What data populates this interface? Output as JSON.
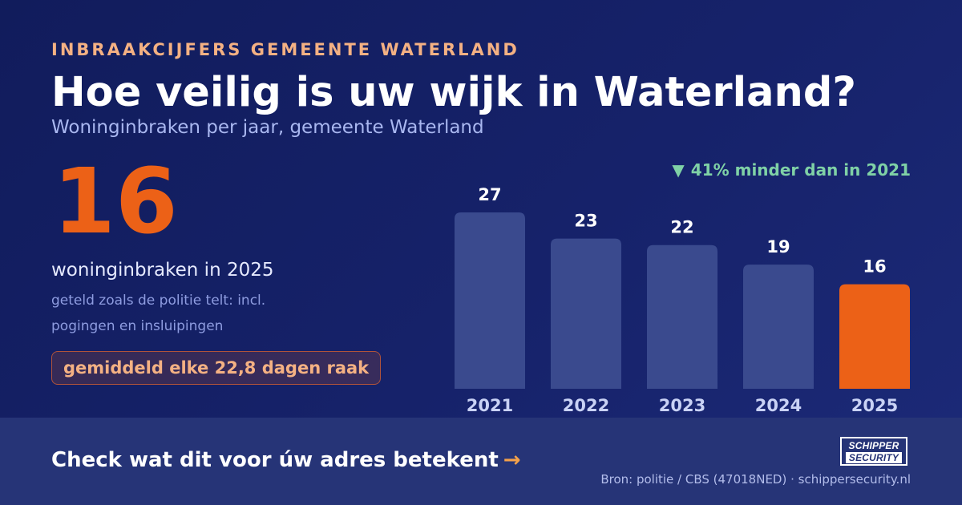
{
  "header": {
    "eyebrow": "INBRAAKCIJFERS GEMEENTE WATERLAND",
    "title": "Hoe veilig is uw wijk in Waterland?",
    "subtitle": "Woninginbraken per jaar, gemeente Waterland"
  },
  "highlight": {
    "number": "16",
    "caption": "woninginbraken in 2025",
    "note_line1": "geteld zoals de politie telt: incl.",
    "note_line2": "pogingen en insluipingen",
    "pill": "gemiddeld elke 22,8 dagen raak"
  },
  "change": {
    "arrow": "▼",
    "text": "41% minder dan in 2021",
    "color": "#7fd1a6"
  },
  "chart_data": {
    "type": "bar",
    "categories": [
      "2021",
      "2022",
      "2023",
      "2024",
      "2025"
    ],
    "values": [
      27,
      23,
      22,
      19,
      16
    ],
    "highlight_index": 4,
    "colors": {
      "bar": "#3a4a8e",
      "highlight": "#ec6117",
      "label": "#ffffff",
      "tick": "#c9d2f5"
    },
    "ylim": [
      0,
      27
    ],
    "grid": false,
    "legend": "none"
  },
  "footer": {
    "cta": "Check wat dit voor úw adres betekent",
    "cta_arrow": "→",
    "logo_line1": "SCHIPPER",
    "logo_line2": "SECURITY",
    "source": "Bron: politie / CBS (47018NED) · schippersecurity.nl"
  }
}
